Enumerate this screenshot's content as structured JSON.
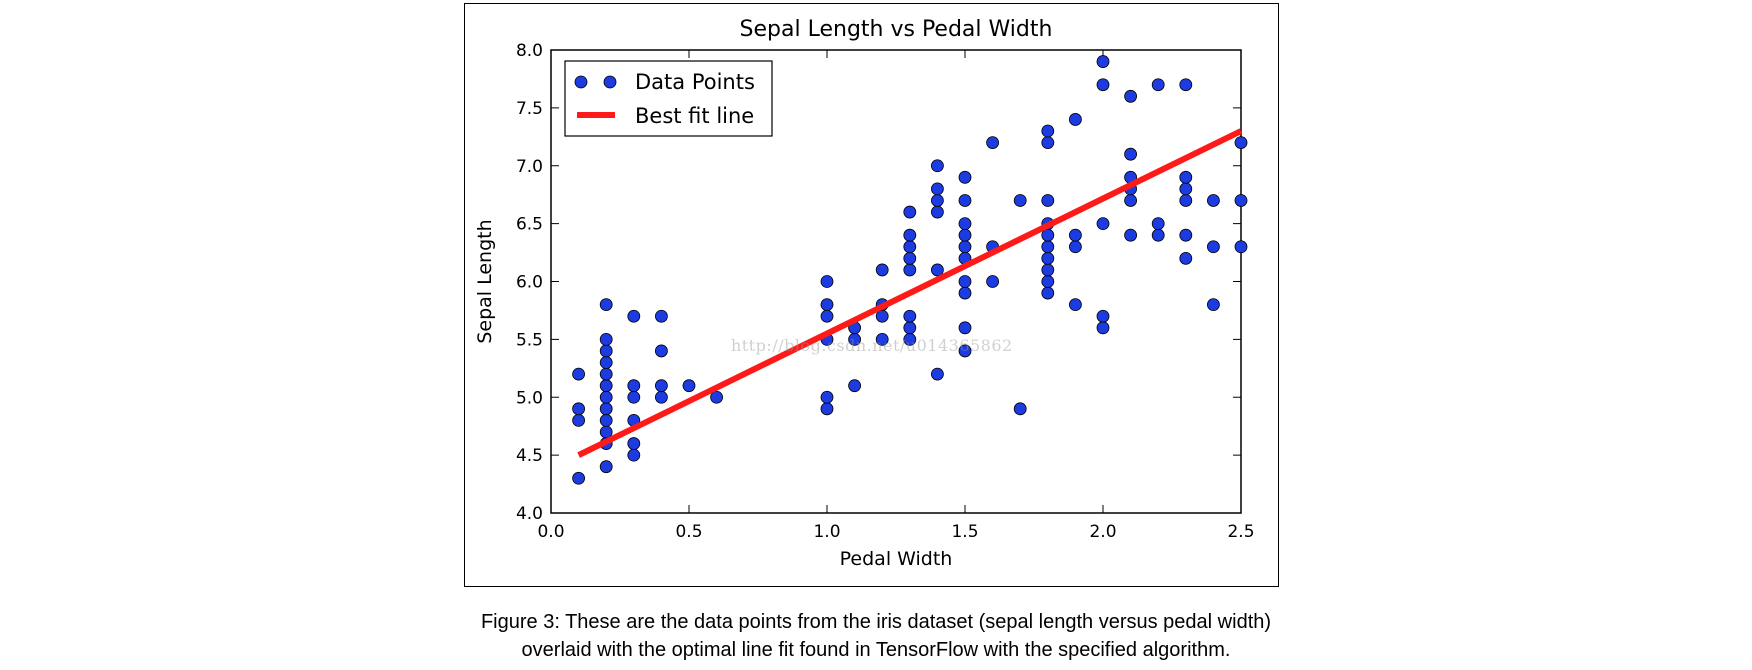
{
  "chart_data": {
    "type": "scatter",
    "title": "Sepal Length vs Pedal Width",
    "xlabel": "Pedal Width",
    "ylabel": "Sepal Length",
    "xlim": [
      0.0,
      2.5
    ],
    "ylim": [
      4.0,
      8.0
    ],
    "xticks": [
      "0.0",
      "0.5",
      "1.0",
      "1.5",
      "2.0",
      "2.5"
    ],
    "yticks": [
      "4.0",
      "4.5",
      "5.0",
      "5.5",
      "6.0",
      "6.5",
      "7.0",
      "7.5",
      "8.0"
    ],
    "grid": false,
    "legend_position": "top-left",
    "series": [
      {
        "name": "Data Points",
        "kind": "markers",
        "color": "#1c3be0",
        "points": [
          [
            0.1,
            4.3
          ],
          [
            0.1,
            4.8
          ],
          [
            0.1,
            4.9
          ],
          [
            0.1,
            5.2
          ],
          [
            0.2,
            4.4
          ],
          [
            0.2,
            4.6
          ],
          [
            0.2,
            4.7
          ],
          [
            0.2,
            4.8
          ],
          [
            0.2,
            4.9
          ],
          [
            0.2,
            5.0
          ],
          [
            0.2,
            5.1
          ],
          [
            0.2,
            5.2
          ],
          [
            0.2,
            5.3
          ],
          [
            0.2,
            5.4
          ],
          [
            0.2,
            5.5
          ],
          [
            0.2,
            5.8
          ],
          [
            0.3,
            4.5
          ],
          [
            0.3,
            4.6
          ],
          [
            0.3,
            4.8
          ],
          [
            0.3,
            5.0
          ],
          [
            0.3,
            5.1
          ],
          [
            0.3,
            5.7
          ],
          [
            0.4,
            5.0
          ],
          [
            0.4,
            5.1
          ],
          [
            0.4,
            5.4
          ],
          [
            0.4,
            5.7
          ],
          [
            0.5,
            5.1
          ],
          [
            0.6,
            5.0
          ],
          [
            1.0,
            4.9
          ],
          [
            1.0,
            5.0
          ],
          [
            1.0,
            5.5
          ],
          [
            1.0,
            5.7
          ],
          [
            1.0,
            5.8
          ],
          [
            1.0,
            6.0
          ],
          [
            1.1,
            5.1
          ],
          [
            1.1,
            5.5
          ],
          [
            1.1,
            5.6
          ],
          [
            1.2,
            5.5
          ],
          [
            1.2,
            5.7
          ],
          [
            1.2,
            5.8
          ],
          [
            1.2,
            6.1
          ],
          [
            1.3,
            5.5
          ],
          [
            1.3,
            5.6
          ],
          [
            1.3,
            5.7
          ],
          [
            1.3,
            6.1
          ],
          [
            1.3,
            6.2
          ],
          [
            1.3,
            6.3
          ],
          [
            1.3,
            6.4
          ],
          [
            1.3,
            6.6
          ],
          [
            1.4,
            5.2
          ],
          [
            1.4,
            6.1
          ],
          [
            1.4,
            6.6
          ],
          [
            1.4,
            6.7
          ],
          [
            1.4,
            6.8
          ],
          [
            1.4,
            7.0
          ],
          [
            1.5,
            5.4
          ],
          [
            1.5,
            5.6
          ],
          [
            1.5,
            5.9
          ],
          [
            1.5,
            6.0
          ],
          [
            1.5,
            6.2
          ],
          [
            1.5,
            6.3
          ],
          [
            1.5,
            6.4
          ],
          [
            1.5,
            6.5
          ],
          [
            1.5,
            6.7
          ],
          [
            1.5,
            6.9
          ],
          [
            1.6,
            6.0
          ],
          [
            1.6,
            6.3
          ],
          [
            1.6,
            7.2
          ],
          [
            1.7,
            4.9
          ],
          [
            1.7,
            6.7
          ],
          [
            1.8,
            5.9
          ],
          [
            1.8,
            6.0
          ],
          [
            1.8,
            6.1
          ],
          [
            1.8,
            6.2
          ],
          [
            1.8,
            6.3
          ],
          [
            1.8,
            6.4
          ],
          [
            1.8,
            6.5
          ],
          [
            1.8,
            6.7
          ],
          [
            1.8,
            7.2
          ],
          [
            1.8,
            7.3
          ],
          [
            1.9,
            5.8
          ],
          [
            1.9,
            6.3
          ],
          [
            1.9,
            6.4
          ],
          [
            1.9,
            7.4
          ],
          [
            2.0,
            5.6
          ],
          [
            2.0,
            5.7
          ],
          [
            2.0,
            6.5
          ],
          [
            2.0,
            7.7
          ],
          [
            2.0,
            7.9
          ],
          [
            2.1,
            6.4
          ],
          [
            2.1,
            6.7
          ],
          [
            2.1,
            6.8
          ],
          [
            2.1,
            6.9
          ],
          [
            2.1,
            7.1
          ],
          [
            2.1,
            7.6
          ],
          [
            2.2,
            6.4
          ],
          [
            2.2,
            6.5
          ],
          [
            2.2,
            7.7
          ],
          [
            2.3,
            6.2
          ],
          [
            2.3,
            6.4
          ],
          [
            2.3,
            6.7
          ],
          [
            2.3,
            6.8
          ],
          [
            2.3,
            6.9
          ],
          [
            2.3,
            7.7
          ],
          [
            2.4,
            5.8
          ],
          [
            2.4,
            6.3
          ],
          [
            2.4,
            6.7
          ],
          [
            2.5,
            6.3
          ],
          [
            2.5,
            6.7
          ],
          [
            2.5,
            7.2
          ]
        ]
      },
      {
        "name": "Best fit line",
        "kind": "line",
        "color": "#ff1a1a",
        "x": [
          0.1,
          2.5
        ],
        "y": [
          4.5,
          7.3
        ]
      }
    ]
  },
  "watermark": "http://blog.csdn.net/u014365862",
  "caption": {
    "line1": "Figure 3: These are the data points from the iris dataset (sepal length versus pedal width)",
    "line2": "overlaid with the optimal line fit found in TensorFlow with the specified algorithm."
  }
}
